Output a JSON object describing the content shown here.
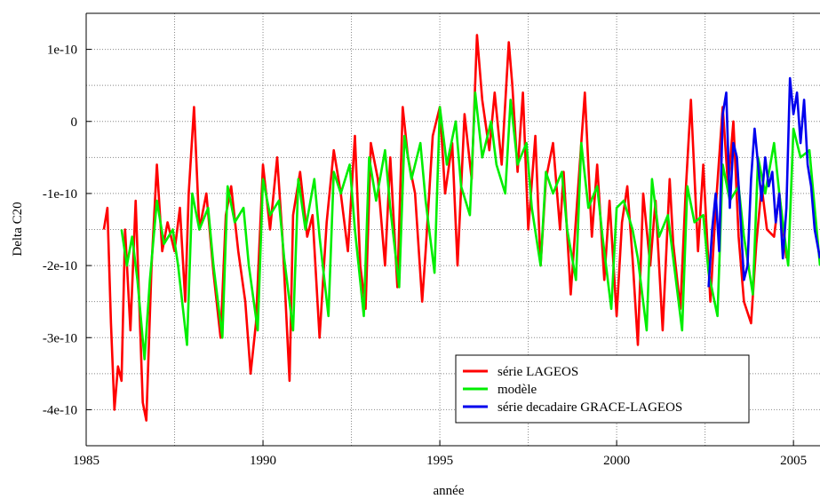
{
  "chart_data": {
    "type": "line",
    "title": "",
    "xlabel": "année",
    "ylabel": "Delta C20",
    "xlim": [
      1985,
      2005.75
    ],
    "ylim": [
      -4.5e-10,
      1.5e-10
    ],
    "grid": true,
    "legend_position": "bottom-right",
    "x_ticks": [
      "1985",
      "1990",
      "1995",
      "2000",
      "2005"
    ],
    "y_ticks": [
      "1e-10",
      "0",
      "-1e-10",
      "-2e-10",
      "-3e-10",
      "-4e-10"
    ],
    "series": [
      {
        "name": "série LAGEOS",
        "color": "#ff0000",
        "x": [
          1985.5,
          1985.6,
          1985.7,
          1985.8,
          1985.9,
          1986.0,
          1986.1,
          1986.25,
          1986.4,
          1986.6,
          1986.7,
          1986.85,
          1987.0,
          1987.15,
          1987.3,
          1987.5,
          1987.65,
          1987.8,
          1987.9,
          1988.05,
          1988.2,
          1988.4,
          1988.6,
          1988.8,
          1988.95,
          1989.1,
          1989.3,
          1989.5,
          1989.65,
          1989.8,
          1990.0,
          1990.2,
          1990.4,
          1990.55,
          1990.75,
          1990.85,
          1991.05,
          1991.25,
          1991.4,
          1991.6,
          1991.8,
          1992.0,
          1992.2,
          1992.4,
          1992.6,
          1992.75,
          1992.9,
          1993.05,
          1993.25,
          1993.45,
          1993.6,
          1993.8,
          1993.95,
          1994.1,
          1994.3,
          1994.5,
          1994.6,
          1994.8,
          1995.0,
          1995.15,
          1995.35,
          1995.5,
          1995.7,
          1995.9,
          1996.05,
          1996.2,
          1996.4,
          1996.55,
          1996.75,
          1996.95,
          1997.05,
          1997.2,
          1997.35,
          1997.5,
          1997.7,
          1997.85,
          1998.0,
          1998.2,
          1998.4,
          1998.5,
          1998.7,
          1998.9,
          1999.1,
          1999.3,
          1999.45,
          1999.65,
          1999.8,
          2000.0,
          2000.15,
          2000.3,
          2000.45,
          2000.6,
          2000.75,
          2000.95,
          2001.1,
          2001.3,
          2001.5,
          2001.6,
          2001.8,
          2001.95,
          2002.1,
          2002.3,
          2002.45,
          2002.65,
          2002.8,
          2003.0,
          2003.15,
          2003.3,
          2003.45,
          2003.6,
          2003.8,
          2003.95,
          2004.1,
          2004.25,
          2004.45,
          2004.6,
          2004.8
        ],
        "y": [
          -1.5e-10,
          -1.2e-10,
          -2.8e-10,
          -4e-10,
          -3.4e-10,
          -3.6e-10,
          -1.5e-10,
          -2.9e-10,
          -1.1e-10,
          -3.9e-10,
          -4.15e-10,
          -2e-10,
          -6e-11,
          -1.8e-10,
          -1.4e-10,
          -1.8e-10,
          -1.2e-10,
          -2.5e-10,
          -1e-10,
          2e-11,
          -1.5e-10,
          -1e-10,
          -2.1e-10,
          -3e-10,
          -1.3e-10,
          -9e-11,
          -1.8e-10,
          -2.5e-10,
          -3.5e-10,
          -2.8e-10,
          -6e-11,
          -1.5e-10,
          -5e-11,
          -1.6e-10,
          -3.6e-10,
          -1.3e-10,
          -7e-11,
          -1.6e-10,
          -1.3e-10,
          -3e-10,
          -1.4e-10,
          -4e-11,
          -1e-10,
          -1.8e-10,
          -2e-11,
          -2e-10,
          -2.6e-10,
          -3e-11,
          -8e-11,
          -2e-10,
          -5e-11,
          -2.3e-10,
          2e-11,
          -5e-11,
          -1e-10,
          -2.5e-10,
          -1.8e-10,
          -2e-11,
          2e-11,
          -1e-10,
          -3e-11,
          -2e-10,
          1e-11,
          -8e-11,
          1.2e-10,
          3e-11,
          -4e-11,
          4e-11,
          -6e-11,
          1.1e-10,
          5e-11,
          -7e-11,
          4e-11,
          -1.5e-10,
          -2e-11,
          -2e-10,
          -8e-11,
          -3e-11,
          -1.5e-10,
          -7e-11,
          -2.4e-10,
          -1e-10,
          4e-11,
          -1.6e-10,
          -6e-11,
          -2.2e-10,
          -1.1e-10,
          -2.7e-10,
          -1.4e-10,
          -9e-11,
          -1.9e-10,
          -3.1e-10,
          -1e-10,
          -2e-10,
          -1.1e-10,
          -2.9e-10,
          -8e-11,
          -1.7e-10,
          -2.6e-10,
          -1e-10,
          3e-11,
          -1.8e-10,
          -6e-11,
          -2.5e-10,
          -1.2e-10,
          2e-11,
          -9e-11,
          0.0,
          -1.6e-10,
          -2.5e-10,
          -2.8e-10,
          -1.7e-10,
          -9e-11,
          -1.5e-10,
          -1.6e-10,
          -1e-10,
          -1.9e-10
        ]
      },
      {
        "name": "modèle",
        "color": "#00ee00",
        "x": [
          1986.0,
          1986.15,
          1986.3,
          1986.45,
          1986.65,
          1986.8,
          1987.0,
          1987.2,
          1987.45,
          1987.6,
          1987.85,
          1988.0,
          1988.2,
          1988.45,
          1988.6,
          1988.85,
          1989.0,
          1989.2,
          1989.45,
          1989.6,
          1989.85,
          1990.0,
          1990.2,
          1990.45,
          1990.6,
          1990.85,
          1991.0,
          1991.2,
          1991.45,
          1991.6,
          1991.85,
          1992.0,
          1992.2,
          1992.45,
          1992.6,
          1992.85,
          1993.0,
          1993.2,
          1993.45,
          1993.6,
          1993.85,
          1994.0,
          1994.2,
          1994.45,
          1994.6,
          1994.85,
          1995.0,
          1995.2,
          1995.45,
          1995.6,
          1995.85,
          1996.0,
          1996.2,
          1996.45,
          1996.6,
          1996.85,
          1997.0,
          1997.2,
          1997.45,
          1997.6,
          1997.85,
          1998.0,
          1998.2,
          1998.45,
          1998.6,
          1998.85,
          1999.0,
          1999.2,
          1999.45,
          1999.6,
          1999.85,
          2000.0,
          2000.2,
          2000.45,
          2000.6,
          2000.85,
          2001.0,
          2001.2,
          2001.45,
          2001.6,
          2001.85,
          2002.0,
          2002.2,
          2002.45,
          2002.6,
          2002.85,
          2003.0,
          2003.2,
          2003.45,
          2003.6,
          2003.85,
          2004.0,
          2004.2,
          2004.45,
          2004.6,
          2004.85,
          2005.0,
          2005.2,
          2005.45,
          2005.6,
          2005.75
        ],
        "y": [
          -1.5e-10,
          -2e-10,
          -1.6e-10,
          -2.2e-10,
          -3.3e-10,
          -2.2e-10,
          -1.1e-10,
          -1.7e-10,
          -1.5e-10,
          -2e-10,
          -3.1e-10,
          -1e-10,
          -1.5e-10,
          -1.2e-10,
          -2e-10,
          -3e-10,
          -9e-11,
          -1.4e-10,
          -1.2e-10,
          -2e-10,
          -2.9e-10,
          -8e-11,
          -1.3e-10,
          -1.1e-10,
          -1.9e-10,
          -2.9e-10,
          -8e-11,
          -1.5e-10,
          -8e-11,
          -1.6e-10,
          -2.7e-10,
          -7e-11,
          -1e-10,
          -6e-11,
          -1.5e-10,
          -2.7e-10,
          -5e-11,
          -1.1e-10,
          -4e-11,
          -1.2e-10,
          -2.3e-10,
          -2e-11,
          -8e-11,
          -3e-11,
          -1.1e-10,
          -2.1e-10,
          2e-11,
          -6e-11,
          0.0,
          -9e-11,
          -1.3e-10,
          4e-11,
          -5e-11,
          0.0,
          -6e-11,
          -1e-10,
          3e-11,
          -6e-11,
          -3e-11,
          -1.2e-10,
          -2e-10,
          -7e-11,
          -1e-10,
          -7e-11,
          -1.5e-10,
          -2.2e-10,
          -3e-11,
          -1.2e-10,
          -9e-11,
          -1.6e-10,
          -2.6e-10,
          -1.2e-10,
          -1.1e-10,
          -1.5e-10,
          -1.9e-10,
          -2.9e-10,
          -8e-11,
          -1.6e-10,
          -1.3e-10,
          -1.9e-10,
          -2.9e-10,
          -9e-11,
          -1.4e-10,
          -1.3e-10,
          -2.1e-10,
          -2.7e-10,
          -6e-11,
          -1.1e-10,
          -9e-11,
          -1.6e-10,
          -2.4e-10,
          -5e-11,
          -1e-10,
          -3e-11,
          -1e-10,
          -2e-10,
          -1e-11,
          -5e-11,
          -4e-11,
          -1.2e-10,
          -2e-10
        ]
      },
      {
        "name": "série decadaire GRACE-LAGEOS",
        "color": "#0000ee",
        "x": [
          2002.6,
          2002.7,
          2002.8,
          2002.9,
          2003.0,
          2003.1,
          2003.2,
          2003.3,
          2003.4,
          2003.5,
          2003.6,
          2003.7,
          2003.8,
          2003.9,
          2004.0,
          2004.1,
          2004.2,
          2004.3,
          2004.4,
          2004.5,
          2004.6,
          2004.7,
          2004.8,
          2004.9,
          2005.0,
          2005.1,
          2005.2,
          2005.3,
          2005.4,
          2005.5,
          2005.6,
          2005.75
        ],
        "y": [
          -2.3e-10,
          -1.5e-10,
          -1e-10,
          -1.8e-10,
          1e-11,
          4e-11,
          -1.2e-10,
          -3e-11,
          -5e-11,
          -1.3e-10,
          -2.2e-10,
          -2e-10,
          -8e-11,
          -1e-11,
          -6e-11,
          -1.1e-10,
          -5e-11,
          -9e-11,
          -7e-11,
          -1.4e-10,
          -1e-10,
          -1.9e-10,
          -1.2e-10,
          6e-11,
          1e-11,
          4e-11,
          -3e-11,
          3e-11,
          -6e-11,
          -9e-11,
          -1.5e-10,
          -1.9e-10
        ]
      }
    ]
  }
}
